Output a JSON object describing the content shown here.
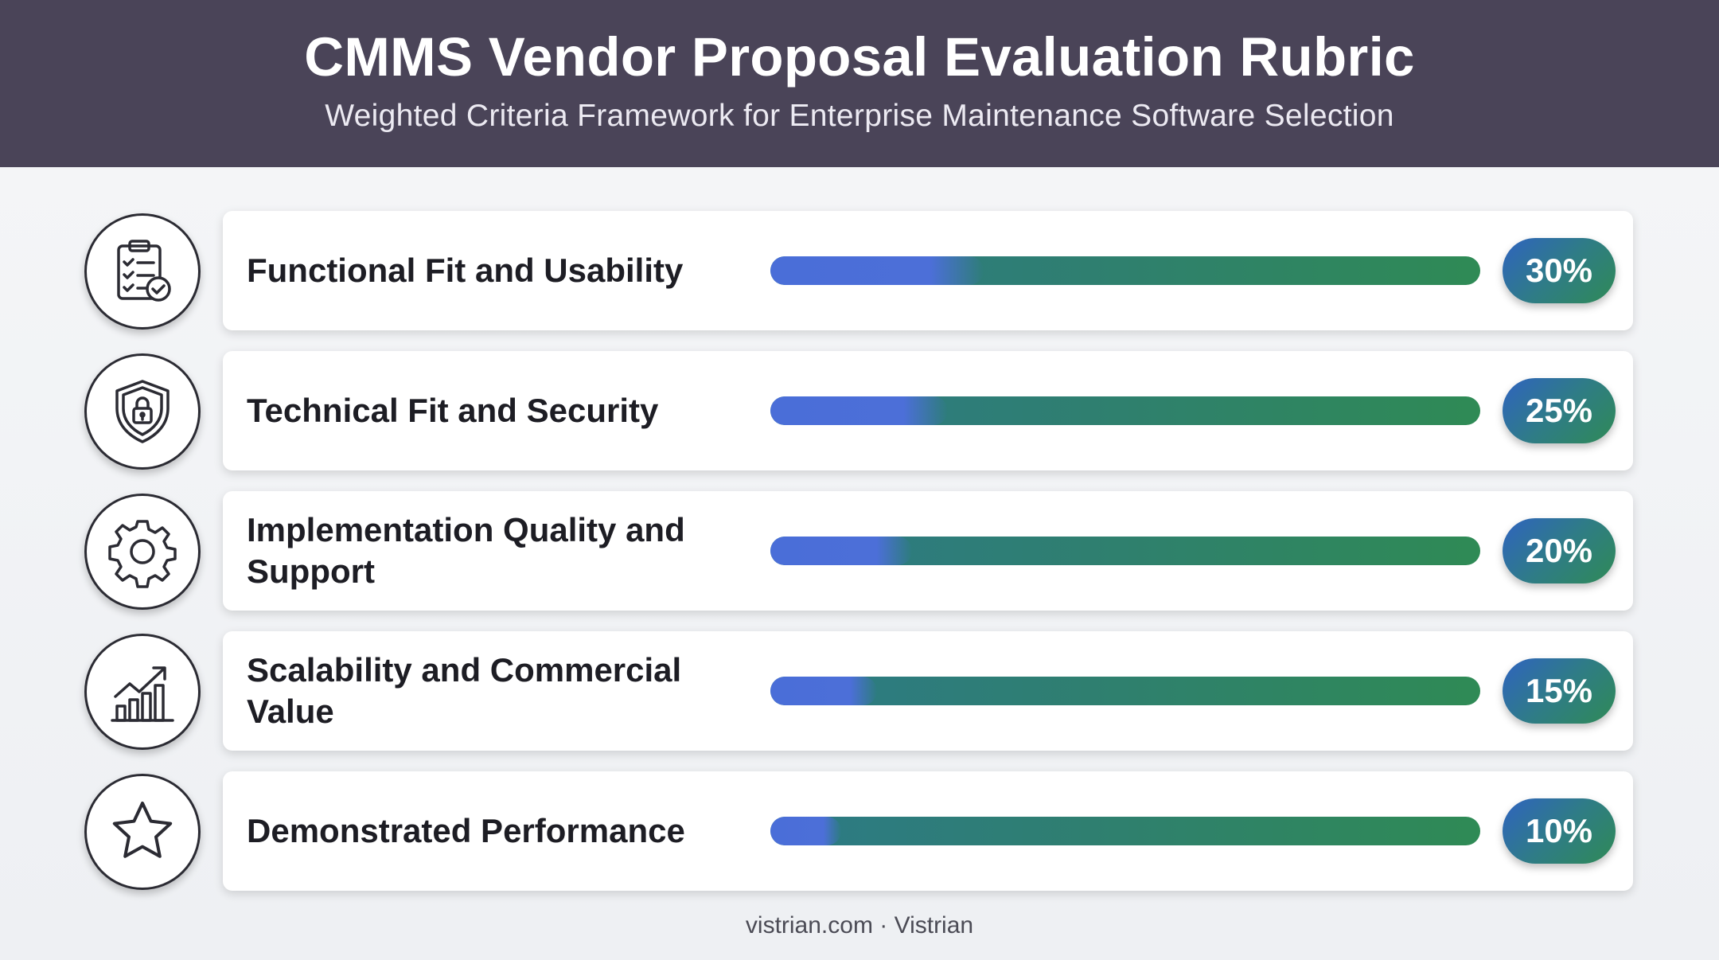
{
  "header": {
    "title": "CMMS Vendor Proposal Evaluation Rubric",
    "subtitle": "Weighted Criteria Framework for Enterprise Maintenance Software Selection"
  },
  "chart_data": {
    "type": "bar",
    "title": "CMMS Vendor Proposal Evaluation Rubric",
    "subtitle": "Weighted Criteria Framework for Enterprise Maintenance Software Selection",
    "categories": [
      "Functional Fit and Usability",
      "Technical Fit and Security",
      "Implementation Quality and Support",
      "Scalability and Commercial Value",
      "Demonstrated Performance"
    ],
    "values": [
      30,
      25,
      20,
      15,
      10
    ],
    "value_labels": [
      "30%",
      "25%",
      "20%",
      "15%",
      "10%"
    ],
    "orientation": "horizontal",
    "ylim": [
      0,
      100
    ],
    "icons": [
      "clipboard-checklist-icon",
      "shield-lock-icon",
      "gear-icon",
      "growth-chart-icon",
      "star-icon"
    ],
    "colors": {
      "fill": "#4a6ed8",
      "track": "#2f8a55",
      "header_bg": "#4a4458"
    }
  },
  "footer": {
    "text": "vistrian.com · Vistrian"
  }
}
